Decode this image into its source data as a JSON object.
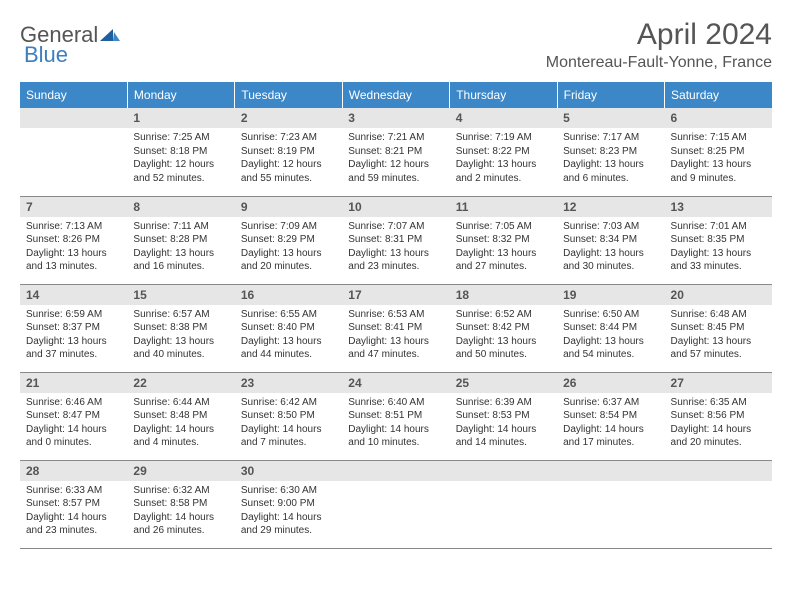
{
  "logo": {
    "part1": "General",
    "part2": "Blue"
  },
  "title": "April 2024",
  "location": "Montereau-Fault-Yonne, France",
  "columns": [
    "Sunday",
    "Monday",
    "Tuesday",
    "Wednesday",
    "Thursday",
    "Friday",
    "Saturday"
  ],
  "colors": {
    "header_bg": "#3b87c8",
    "daybar_bg": "#e6e6e6",
    "border": "#888888",
    "logo_blue": "#3b7fbf"
  },
  "weeks": [
    [
      {
        "n": null
      },
      {
        "n": "1",
        "sr": "Sunrise: 7:25 AM",
        "ss": "Sunset: 8:18 PM",
        "dl1": "Daylight: 12 hours",
        "dl2": "and 52 minutes."
      },
      {
        "n": "2",
        "sr": "Sunrise: 7:23 AM",
        "ss": "Sunset: 8:19 PM",
        "dl1": "Daylight: 12 hours",
        "dl2": "and 55 minutes."
      },
      {
        "n": "3",
        "sr": "Sunrise: 7:21 AM",
        "ss": "Sunset: 8:21 PM",
        "dl1": "Daylight: 12 hours",
        "dl2": "and 59 minutes."
      },
      {
        "n": "4",
        "sr": "Sunrise: 7:19 AM",
        "ss": "Sunset: 8:22 PM",
        "dl1": "Daylight: 13 hours",
        "dl2": "and 2 minutes."
      },
      {
        "n": "5",
        "sr": "Sunrise: 7:17 AM",
        "ss": "Sunset: 8:23 PM",
        "dl1": "Daylight: 13 hours",
        "dl2": "and 6 minutes."
      },
      {
        "n": "6",
        "sr": "Sunrise: 7:15 AM",
        "ss": "Sunset: 8:25 PM",
        "dl1": "Daylight: 13 hours",
        "dl2": "and 9 minutes."
      }
    ],
    [
      {
        "n": "7",
        "sr": "Sunrise: 7:13 AM",
        "ss": "Sunset: 8:26 PM",
        "dl1": "Daylight: 13 hours",
        "dl2": "and 13 minutes."
      },
      {
        "n": "8",
        "sr": "Sunrise: 7:11 AM",
        "ss": "Sunset: 8:28 PM",
        "dl1": "Daylight: 13 hours",
        "dl2": "and 16 minutes."
      },
      {
        "n": "9",
        "sr": "Sunrise: 7:09 AM",
        "ss": "Sunset: 8:29 PM",
        "dl1": "Daylight: 13 hours",
        "dl2": "and 20 minutes."
      },
      {
        "n": "10",
        "sr": "Sunrise: 7:07 AM",
        "ss": "Sunset: 8:31 PM",
        "dl1": "Daylight: 13 hours",
        "dl2": "and 23 minutes."
      },
      {
        "n": "11",
        "sr": "Sunrise: 7:05 AM",
        "ss": "Sunset: 8:32 PM",
        "dl1": "Daylight: 13 hours",
        "dl2": "and 27 minutes."
      },
      {
        "n": "12",
        "sr": "Sunrise: 7:03 AM",
        "ss": "Sunset: 8:34 PM",
        "dl1": "Daylight: 13 hours",
        "dl2": "and 30 minutes."
      },
      {
        "n": "13",
        "sr": "Sunrise: 7:01 AM",
        "ss": "Sunset: 8:35 PM",
        "dl1": "Daylight: 13 hours",
        "dl2": "and 33 minutes."
      }
    ],
    [
      {
        "n": "14",
        "sr": "Sunrise: 6:59 AM",
        "ss": "Sunset: 8:37 PM",
        "dl1": "Daylight: 13 hours",
        "dl2": "and 37 minutes."
      },
      {
        "n": "15",
        "sr": "Sunrise: 6:57 AM",
        "ss": "Sunset: 8:38 PM",
        "dl1": "Daylight: 13 hours",
        "dl2": "and 40 minutes."
      },
      {
        "n": "16",
        "sr": "Sunrise: 6:55 AM",
        "ss": "Sunset: 8:40 PM",
        "dl1": "Daylight: 13 hours",
        "dl2": "and 44 minutes."
      },
      {
        "n": "17",
        "sr": "Sunrise: 6:53 AM",
        "ss": "Sunset: 8:41 PM",
        "dl1": "Daylight: 13 hours",
        "dl2": "and 47 minutes."
      },
      {
        "n": "18",
        "sr": "Sunrise: 6:52 AM",
        "ss": "Sunset: 8:42 PM",
        "dl1": "Daylight: 13 hours",
        "dl2": "and 50 minutes."
      },
      {
        "n": "19",
        "sr": "Sunrise: 6:50 AM",
        "ss": "Sunset: 8:44 PM",
        "dl1": "Daylight: 13 hours",
        "dl2": "and 54 minutes."
      },
      {
        "n": "20",
        "sr": "Sunrise: 6:48 AM",
        "ss": "Sunset: 8:45 PM",
        "dl1": "Daylight: 13 hours",
        "dl2": "and 57 minutes."
      }
    ],
    [
      {
        "n": "21",
        "sr": "Sunrise: 6:46 AM",
        "ss": "Sunset: 8:47 PM",
        "dl1": "Daylight: 14 hours",
        "dl2": "and 0 minutes."
      },
      {
        "n": "22",
        "sr": "Sunrise: 6:44 AM",
        "ss": "Sunset: 8:48 PM",
        "dl1": "Daylight: 14 hours",
        "dl2": "and 4 minutes."
      },
      {
        "n": "23",
        "sr": "Sunrise: 6:42 AM",
        "ss": "Sunset: 8:50 PM",
        "dl1": "Daylight: 14 hours",
        "dl2": "and 7 minutes."
      },
      {
        "n": "24",
        "sr": "Sunrise: 6:40 AM",
        "ss": "Sunset: 8:51 PM",
        "dl1": "Daylight: 14 hours",
        "dl2": "and 10 minutes."
      },
      {
        "n": "25",
        "sr": "Sunrise: 6:39 AM",
        "ss": "Sunset: 8:53 PM",
        "dl1": "Daylight: 14 hours",
        "dl2": "and 14 minutes."
      },
      {
        "n": "26",
        "sr": "Sunrise: 6:37 AM",
        "ss": "Sunset: 8:54 PM",
        "dl1": "Daylight: 14 hours",
        "dl2": "and 17 minutes."
      },
      {
        "n": "27",
        "sr": "Sunrise: 6:35 AM",
        "ss": "Sunset: 8:56 PM",
        "dl1": "Daylight: 14 hours",
        "dl2": "and 20 minutes."
      }
    ],
    [
      {
        "n": "28",
        "sr": "Sunrise: 6:33 AM",
        "ss": "Sunset: 8:57 PM",
        "dl1": "Daylight: 14 hours",
        "dl2": "and 23 minutes."
      },
      {
        "n": "29",
        "sr": "Sunrise: 6:32 AM",
        "ss": "Sunset: 8:58 PM",
        "dl1": "Daylight: 14 hours",
        "dl2": "and 26 minutes."
      },
      {
        "n": "30",
        "sr": "Sunrise: 6:30 AM",
        "ss": "Sunset: 9:00 PM",
        "dl1": "Daylight: 14 hours",
        "dl2": "and 29 minutes."
      },
      {
        "n": null
      },
      {
        "n": null
      },
      {
        "n": null
      },
      {
        "n": null
      }
    ]
  ]
}
